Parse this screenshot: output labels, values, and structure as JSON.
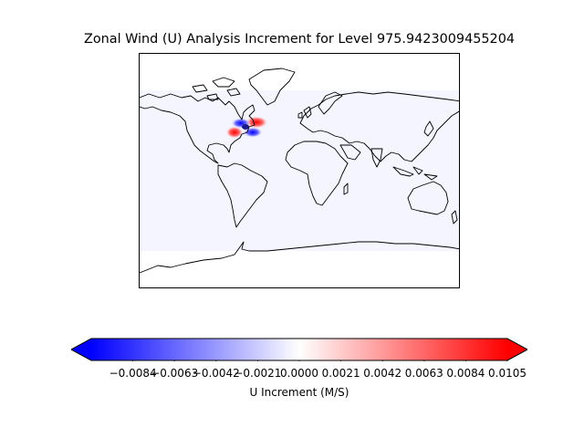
{
  "title": "Zonal Wind (U) Analysis Increment for Level 975.9423009455204",
  "colorbar": {
    "label": "U Increment (M/S)",
    "ticks": [
      "−0.0084",
      "−0.0063",
      "−0.0042",
      "−0.0021",
      "0.0000",
      "0.0021",
      "0.0042",
      "0.0063",
      "0.0084",
      "0.0105"
    ],
    "tick_values": [
      -0.0084,
      -0.0063,
      -0.0042,
      -0.0021,
      0.0,
      0.0021,
      0.0042,
      0.0063,
      0.0084,
      0.0105
    ],
    "vmin": -0.0105,
    "vmax": 0.0105,
    "extend": "both",
    "colormap": "bwr",
    "colors": {
      "low": "#0000ff",
      "mid": "#ffffff",
      "high": "#ff0000"
    }
  },
  "map": {
    "projection": "PlateCarree",
    "coastlines": true,
    "background_fill": "#f4f5ff",
    "feature": "dipole increment pattern off the northeastern coast of North America"
  }
}
